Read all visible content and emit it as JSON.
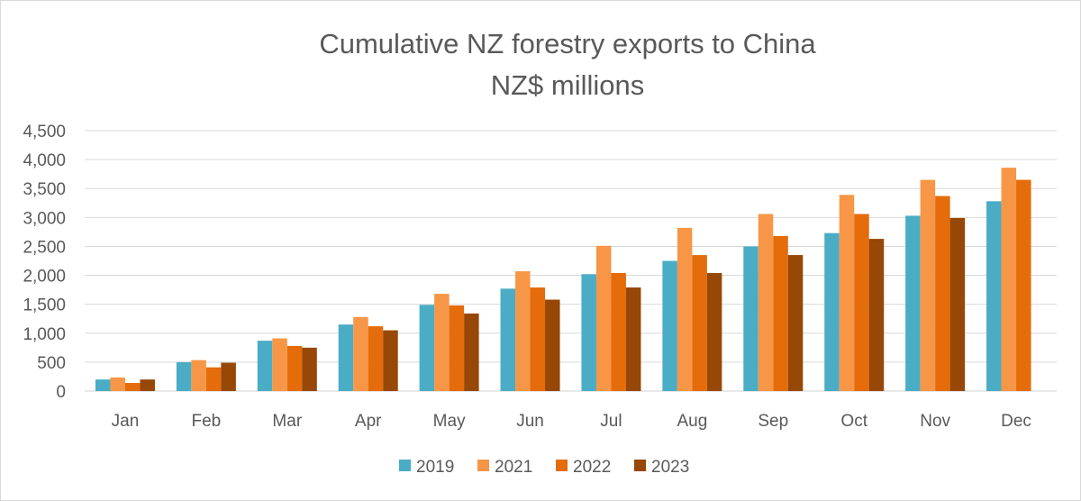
{
  "chart_data": {
    "type": "bar",
    "title": [
      "Cumulative NZ forestry exports to China",
      "NZ$ millions"
    ],
    "xlabel": "",
    "ylabel": "",
    "ylim": [
      0,
      4500
    ],
    "yticks": [
      0,
      500,
      1000,
      1500,
      2000,
      2500,
      3000,
      3500,
      4000,
      4500
    ],
    "ytick_labels": [
      "0",
      "500",
      "1,000",
      "1,500",
      "2,000",
      "2,500",
      "3,000",
      "3,500",
      "4,000",
      "4,500"
    ],
    "grid": true,
    "legend_position": "bottom",
    "categories": [
      "Jan",
      "Feb",
      "Mar",
      "Apr",
      "May",
      "Jun",
      "Jul",
      "Aug",
      "Sep",
      "Oct",
      "Nov",
      "Dec"
    ],
    "series": [
      {
        "name": "2019",
        "color": "#4bacc6",
        "values": [
          200,
          500,
          870,
          1150,
          1490,
          1770,
          2020,
          2250,
          2500,
          2730,
          3030,
          3280
        ]
      },
      {
        "name": "2021",
        "color": "#f79646",
        "values": [
          235,
          535,
          910,
          1280,
          1680,
          2070,
          2510,
          2820,
          3060,
          3390,
          3650,
          3860
        ]
      },
      {
        "name": "2022",
        "color": "#e46c0a",
        "values": [
          140,
          410,
          780,
          1120,
          1480,
          1790,
          2040,
          2350,
          2680,
          3060,
          3370,
          3650
        ]
      },
      {
        "name": "2023",
        "color": "#974706",
        "values": [
          200,
          490,
          750,
          1050,
          1340,
          1580,
          1790,
          2040,
          2350,
          2630,
          2990,
          null
        ]
      }
    ]
  }
}
